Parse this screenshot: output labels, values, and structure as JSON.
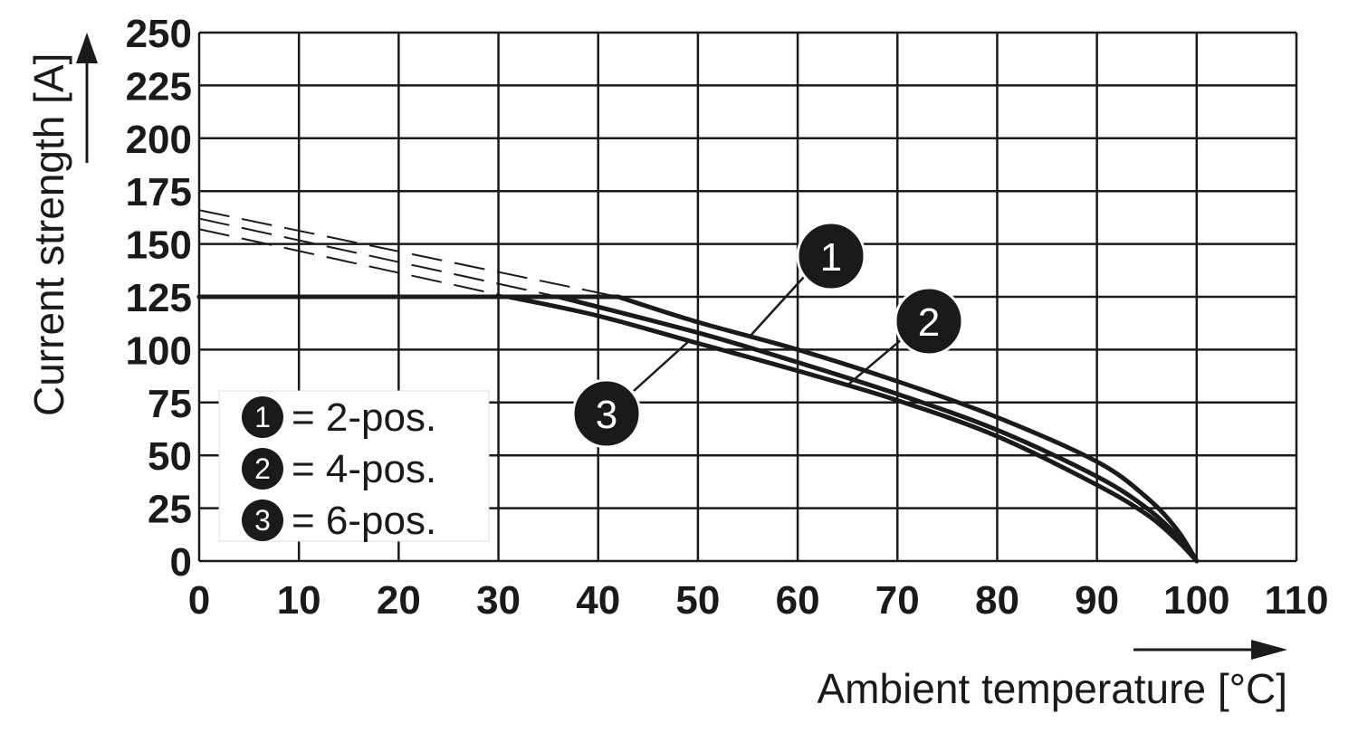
{
  "chart_data": {
    "type": "line",
    "title": "",
    "xlabel": "Ambient temperature [°C]",
    "ylabel": "Current strength [A]",
    "xlim": [
      0,
      110
    ],
    "ylim": [
      0,
      250
    ],
    "x_ticks": [
      "0",
      "10",
      "20",
      "30",
      "40",
      "50",
      "60",
      "70",
      "80",
      "90",
      "100",
      "110"
    ],
    "y_ticks": [
      "0",
      "25",
      "50",
      "75",
      "100",
      "125",
      "150",
      "175",
      "200",
      "225",
      "250"
    ],
    "grid": true,
    "legend_position": "bottom-left",
    "legend": [
      {
        "marker": "1",
        "label": "= 2-pos."
      },
      {
        "marker": "2",
        "label": "= 4-pos."
      },
      {
        "marker": "3",
        "label": "= 6-pos."
      }
    ],
    "series": [
      {
        "marker": "1",
        "x": [
          0,
          42,
          50,
          60,
          70,
          80,
          90,
          95,
          98,
          100
        ],
        "y": [
          125,
          125,
          113,
          100,
          85,
          68,
          47,
          30,
          15,
          0
        ],
        "extrapolation": {
          "x": [
            0,
            42
          ],
          "y": [
            166,
            125
          ]
        }
      },
      {
        "marker": "2",
        "x": [
          0,
          36,
          50,
          60,
          70,
          80,
          90,
          95,
          98,
          100
        ],
        "y": [
          125,
          125,
          108,
          94,
          79,
          62,
          40,
          25,
          12,
          0
        ],
        "extrapolation": {
          "x": [
            0,
            36
          ],
          "y": [
            162,
            125
          ]
        }
      },
      {
        "marker": "3",
        "x": [
          0,
          31,
          40,
          50,
          60,
          70,
          80,
          90,
          95,
          98,
          100
        ],
        "y": [
          125,
          125,
          116,
          103,
          90,
          76,
          59,
          36,
          22,
          10,
          0
        ],
        "extrapolation": {
          "x": [
            0,
            31
          ],
          "y": [
            157,
            125
          ]
        }
      }
    ]
  }
}
